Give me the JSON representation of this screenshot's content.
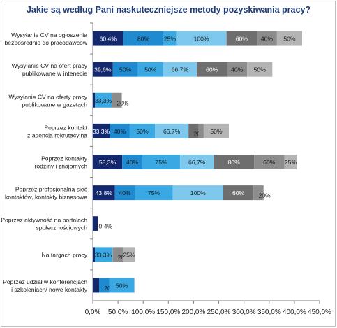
{
  "chart_data": {
    "type": "bar",
    "orientation": "horizontal",
    "stacked": true,
    "title": "Jakie są według Pani naskuteczniejsze metody pozyskiwania pracy?",
    "xlim": [
      0,
      450
    ],
    "x_ticks": [
      "0,0%",
      "50,0%",
      "100,0%",
      "150,0%",
      "200,0%",
      "250,0%",
      "300,0%",
      "350,0%",
      "400,0%",
      "450,0%"
    ],
    "x_tick_values": [
      0,
      50,
      100,
      150,
      200,
      250,
      300,
      350,
      400,
      450
    ],
    "grid": false,
    "legend": "none",
    "categories": [
      [
        "Wysyłanie CV na ogłoszenia",
        "bezpośrednio do pracodawców"
      ],
      [
        "Wysyłanie CV na ofert pracy",
        "publikowane w intenecie"
      ],
      [
        "Wysyłanie CV na oferty pracy",
        "publikowane w gazetach"
      ],
      [
        "Poprzez kontakt",
        "z agencją rekrutacyjną"
      ],
      [
        "Poprzez kontakty",
        "rodziny i znajomych"
      ],
      [
        "Poprzez profesjonalną sieć",
        "kontaktów, kontakty biznesowe"
      ],
      [
        "Poprzez aktywność na portalach",
        "społecznościowych"
      ],
      [
        "Na targach pracy"
      ],
      [
        "Poprzez udział w konferencjach",
        "i szkoleniach/ nowe kontakty"
      ]
    ],
    "series": [
      {
        "color": "#14286e",
        "values": [
          60.4,
          39.6,
          4.2,
          33.3,
          58.3,
          43.8,
          10.4,
          4.2,
          12.5
        ],
        "labels": [
          "60,4%",
          "39,6%",
          "4,2%",
          "33,3%",
          "58,3%",
          "43,8%",
          "10,4%",
          "",
          "12,5%"
        ]
      },
      {
        "color": "#1f8ad0",
        "values": [
          80,
          50,
          0,
          40,
          40,
          40,
          0,
          0,
          20
        ],
        "labels": [
          "80%",
          "50%",
          "",
          "40%",
          "40%",
          "40%",
          "",
          "",
          "20%"
        ]
      },
      {
        "color": "#3aa9e3",
        "values": [
          25,
          50,
          33.3,
          50,
          75,
          75,
          0,
          33.3,
          50
        ],
        "labels": [
          "25%",
          "50%",
          "33,3%",
          "50%",
          "75%",
          "75%",
          "",
          "33,3%",
          "50%"
        ]
      },
      {
        "color": "#7ec8ee",
        "values": [
          100,
          66.7,
          0,
          66.7,
          66.7,
          100,
          0,
          2,
          0
        ],
        "labels": [
          "100%",
          "66,7%",
          "",
          "66,7%",
          "66,7%",
          "100%",
          "",
          "2%",
          ""
        ]
      },
      {
        "color": "#6e6e6e",
        "values": [
          60,
          60,
          0,
          20,
          80,
          60,
          0,
          0,
          0
        ],
        "labels": [
          "60%",
          "60%",
          "",
          "20%",
          "80%",
          "60%",
          "",
          "",
          ""
        ]
      },
      {
        "color": "#8c8c8c",
        "values": [
          40,
          40,
          20,
          10,
          60,
          20,
          0,
          20,
          0
        ],
        "labels": [
          "40%",
          "40%",
          "20%",
          "",
          "60%",
          "20%",
          "",
          "20%",
          ""
        ]
      },
      {
        "color": "#b4b4b4",
        "values": [
          50,
          50,
          0,
          50,
          25,
          0,
          0,
          25,
          0
        ],
        "labels": [
          "50%",
          "50%",
          "",
          "50%",
          "25%",
          "",
          "",
          "25%",
          ""
        ]
      }
    ]
  }
}
